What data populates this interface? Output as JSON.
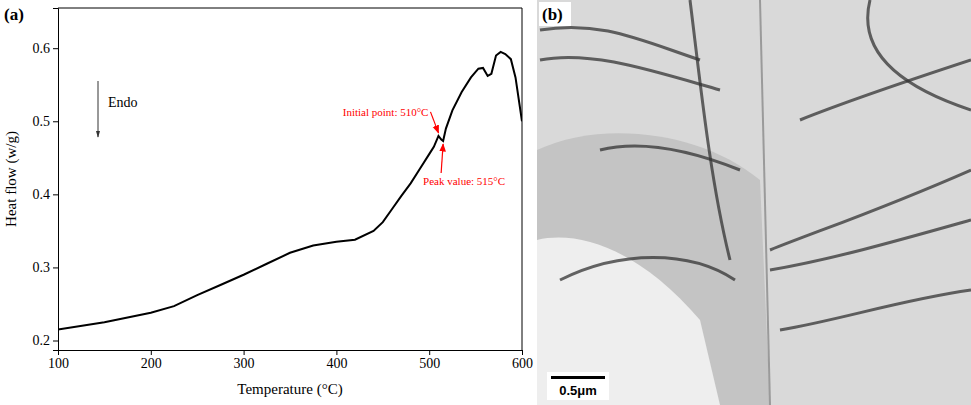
{
  "chart_data": {
    "type": "line",
    "label": "(a)",
    "x_label": "Temperature (°C)",
    "y_label": "Heat flow (w/g)",
    "x": [
      100,
      150,
      200,
      225,
      250,
      275,
      300,
      325,
      350,
      375,
      400,
      420,
      440,
      450,
      460,
      470,
      480,
      490,
      500,
      505,
      510,
      513,
      515,
      518,
      525,
      535,
      545,
      553,
      558,
      563,
      567,
      572,
      577,
      582,
      588,
      593,
      600
    ],
    "values": [
      0.215,
      0.225,
      0.238,
      0.247,
      0.262,
      0.276,
      0.29,
      0.305,
      0.32,
      0.33,
      0.335,
      0.338,
      0.35,
      0.362,
      0.38,
      0.398,
      0.415,
      0.435,
      0.455,
      0.465,
      0.48,
      0.475,
      0.473,
      0.49,
      0.515,
      0.54,
      0.56,
      0.572,
      0.573,
      0.562,
      0.565,
      0.59,
      0.595,
      0.592,
      0.585,
      0.56,
      0.5
    ],
    "color": "#000000",
    "xlim": [
      100,
      600
    ],
    "xticks": [
      100,
      200,
      300,
      400,
      500,
      600
    ],
    "ylim": [
      0.187,
      0.655
    ],
    "yticks": [
      0.2,
      0.3,
      0.4,
      0.5,
      0.6
    ],
    "direction_note": "Endo",
    "annotations": [
      {
        "text": "Initial point: 510°C",
        "x": 510,
        "y": 0.48,
        "color": "#ff0000"
      },
      {
        "text": "Peak value: 515°C",
        "x": 515,
        "y": 0.473,
        "color": "#ff0000"
      }
    ]
  },
  "image_panel": {
    "label": "(b)",
    "scale_bar": "0.5μm"
  }
}
